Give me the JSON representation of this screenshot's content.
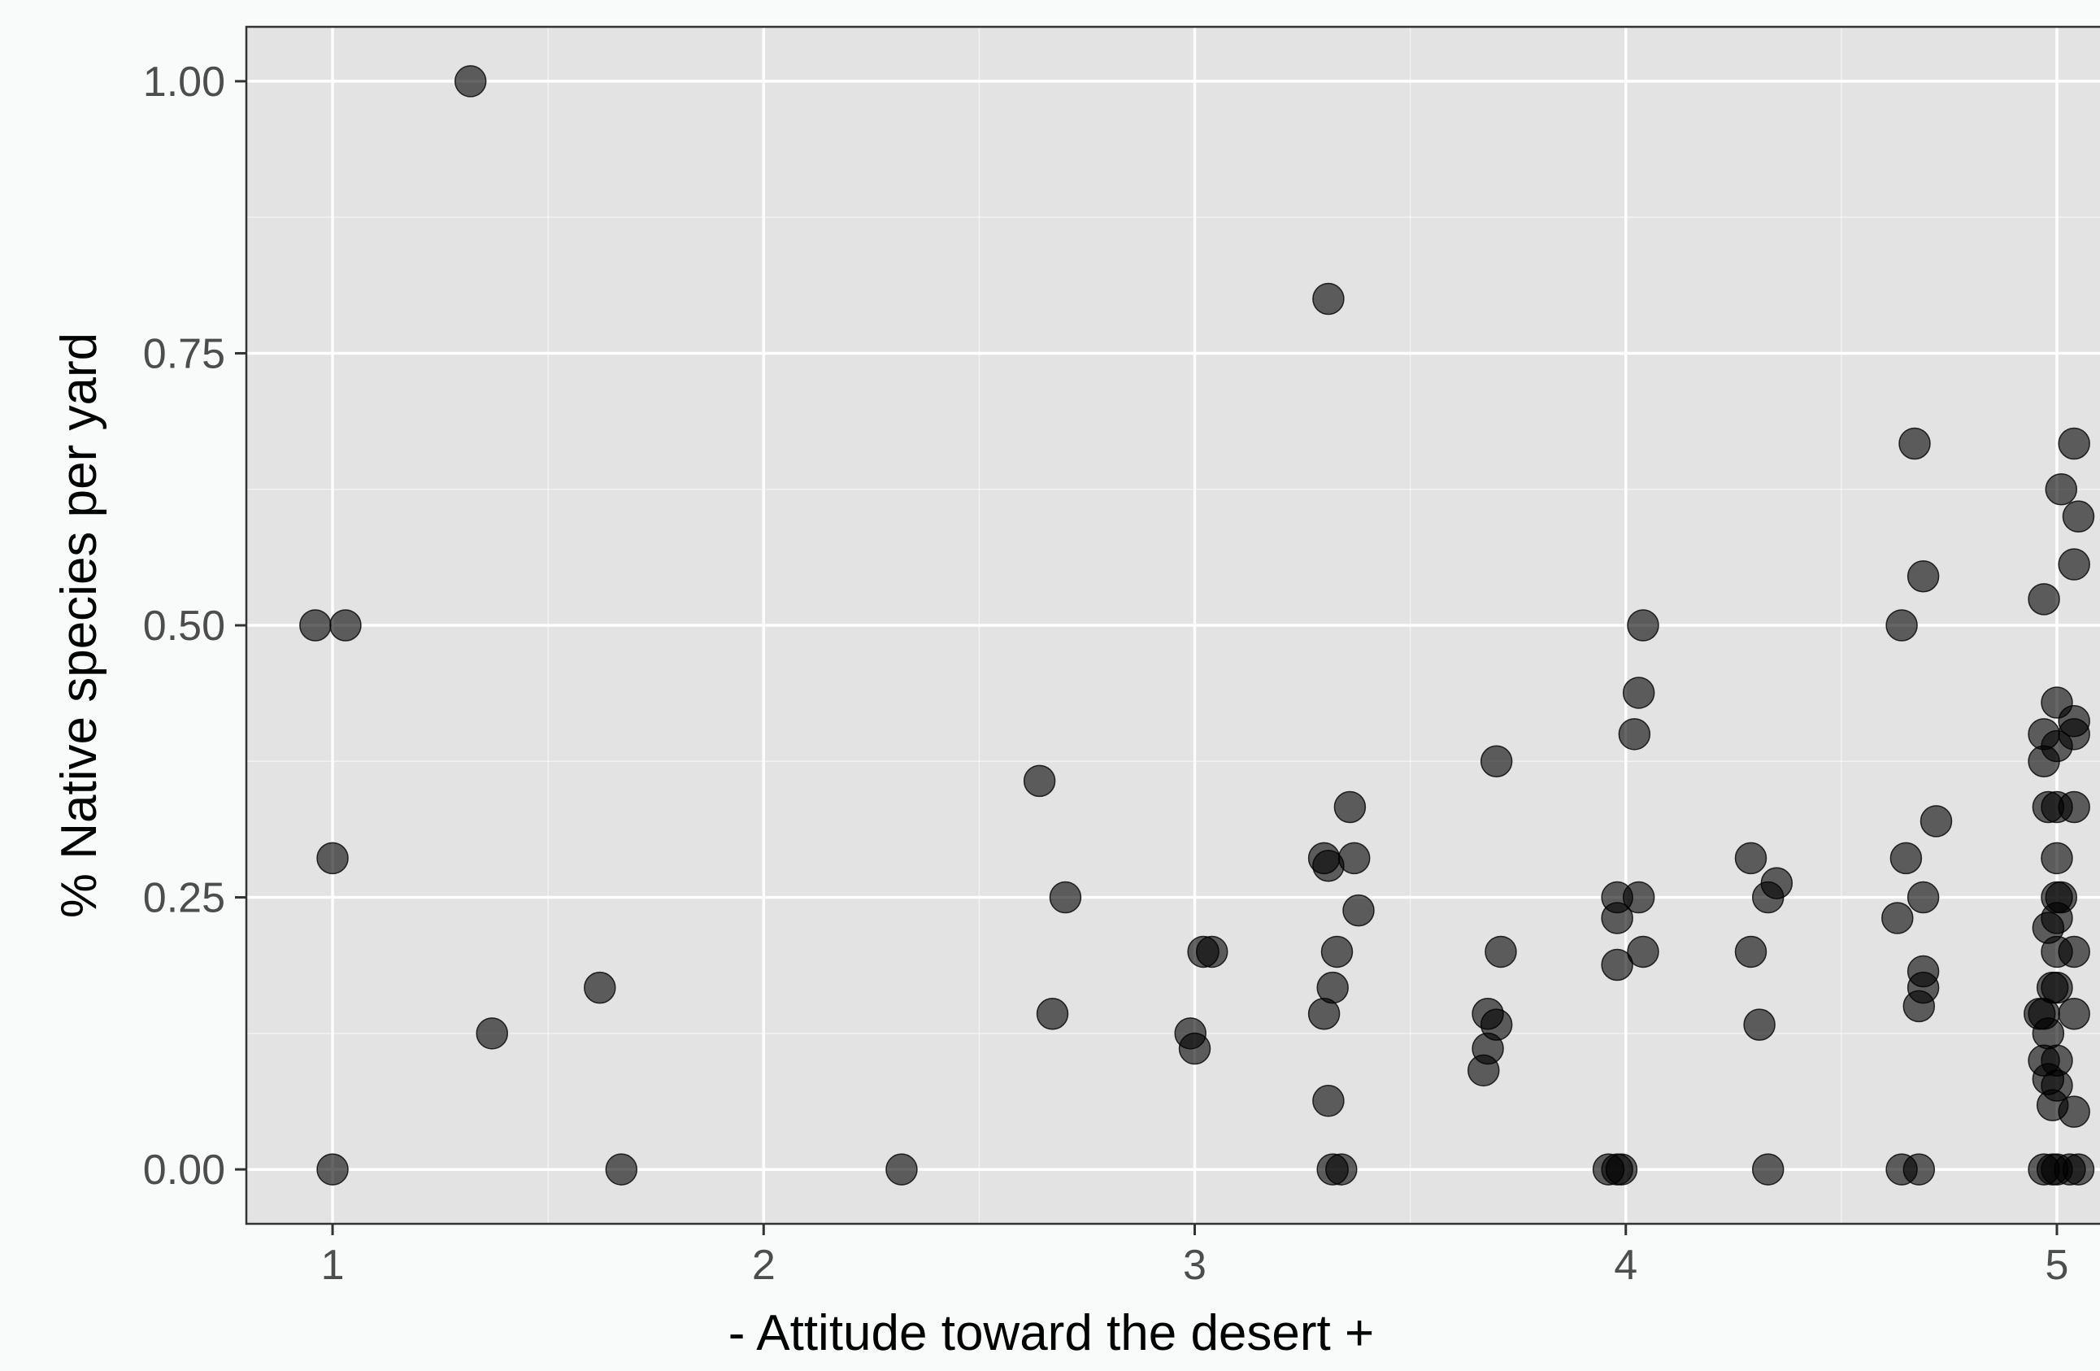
{
  "chart_data": {
    "type": "scatter",
    "title": "",
    "xlabel": "- Attitude toward the desert +",
    "ylabel": "% Native species per yard",
    "xlim": [
      0.8,
      5.1
    ],
    "ylim": [
      -0.05,
      1.05
    ],
    "x_ticks": [
      1,
      2,
      3,
      4,
      5
    ],
    "x_tick_labels": [
      "1",
      "2",
      "3",
      "4",
      "5"
    ],
    "y_ticks": [
      0,
      0.25,
      0.5,
      0.75,
      1
    ],
    "y_tick_labels": [
      "0.00",
      "0.25",
      "0.50",
      "0.75",
      "1.00"
    ],
    "grid": true,
    "legend": "none",
    "colors": {
      "panel": "#e3e3e3",
      "grid": "#ffffff",
      "point": "#000000",
      "point_opacity": 0.6
    },
    "points": [
      {
        "x": 0.96,
        "y": 0.5
      },
      {
        "x": 1.03,
        "y": 0.5
      },
      {
        "x": 1.0,
        "y": 0.286
      },
      {
        "x": 1.0,
        "y": 0.0
      },
      {
        "x": 1.32,
        "y": 1.0
      },
      {
        "x": 1.37,
        "y": 0.125
      },
      {
        "x": 1.62,
        "y": 0.167
      },
      {
        "x": 1.67,
        "y": 0.0
      },
      {
        "x": 2.32,
        "y": 0.0
      },
      {
        "x": 2.64,
        "y": 0.357
      },
      {
        "x": 2.67,
        "y": 0.143
      },
      {
        "x": 2.7,
        "y": 0.25
      },
      {
        "x": 2.99,
        "y": 0.125
      },
      {
        "x": 3.0,
        "y": 0.111
      },
      {
        "x": 3.02,
        "y": 0.2
      },
      {
        "x": 3.04,
        "y": 0.2
      },
      {
        "x": 3.31,
        "y": 0.8
      },
      {
        "x": 3.3,
        "y": 0.286
      },
      {
        "x": 3.31,
        "y": 0.279
      },
      {
        "x": 3.36,
        "y": 0.333
      },
      {
        "x": 3.37,
        "y": 0.286
      },
      {
        "x": 3.38,
        "y": 0.238
      },
      {
        "x": 3.33,
        "y": 0.2
      },
      {
        "x": 3.32,
        "y": 0.167
      },
      {
        "x": 3.3,
        "y": 0.143
      },
      {
        "x": 3.31,
        "y": 0.063
      },
      {
        "x": 3.32,
        "y": 0.0
      },
      {
        "x": 3.34,
        "y": 0.0
      },
      {
        "x": 3.7,
        "y": 0.375
      },
      {
        "x": 3.71,
        "y": 0.2
      },
      {
        "x": 3.68,
        "y": 0.143
      },
      {
        "x": 3.7,
        "y": 0.133
      },
      {
        "x": 3.68,
        "y": 0.111
      },
      {
        "x": 3.67,
        "y": 0.091
      },
      {
        "x": 4.04,
        "y": 0.5
      },
      {
        "x": 4.03,
        "y": 0.438
      },
      {
        "x": 4.02,
        "y": 0.4
      },
      {
        "x": 3.98,
        "y": 0.25
      },
      {
        "x": 4.03,
        "y": 0.25
      },
      {
        "x": 3.98,
        "y": 0.231
      },
      {
        "x": 4.04,
        "y": 0.2
      },
      {
        "x": 3.98,
        "y": 0.188
      },
      {
        "x": 3.96,
        "y": 0.0
      },
      {
        "x": 3.98,
        "y": 0.0
      },
      {
        "x": 3.99,
        "y": 0.0
      },
      {
        "x": 4.29,
        "y": 0.286
      },
      {
        "x": 4.35,
        "y": 0.263
      },
      {
        "x": 4.33,
        "y": 0.25
      },
      {
        "x": 4.29,
        "y": 0.2
      },
      {
        "x": 4.31,
        "y": 0.133
      },
      {
        "x": 4.33,
        "y": 0.0
      },
      {
        "x": 4.67,
        "y": 0.667
      },
      {
        "x": 4.69,
        "y": 0.545
      },
      {
        "x": 4.64,
        "y": 0.5
      },
      {
        "x": 4.72,
        "y": 0.32
      },
      {
        "x": 4.65,
        "y": 0.286
      },
      {
        "x": 4.69,
        "y": 0.25
      },
      {
        "x": 4.63,
        "y": 0.231
      },
      {
        "x": 4.69,
        "y": 0.182
      },
      {
        "x": 4.69,
        "y": 0.167
      },
      {
        "x": 4.68,
        "y": 0.15
      },
      {
        "x": 4.64,
        "y": 0.0
      },
      {
        "x": 4.68,
        "y": 0.0
      },
      {
        "x": 5.04,
        "y": 0.667
      },
      {
        "x": 5.01,
        "y": 0.625
      },
      {
        "x": 5.05,
        "y": 0.6
      },
      {
        "x": 5.04,
        "y": 0.556
      },
      {
        "x": 4.97,
        "y": 0.524
      },
      {
        "x": 5.0,
        "y": 0.429
      },
      {
        "x": 5.04,
        "y": 0.412
      },
      {
        "x": 4.97,
        "y": 0.4
      },
      {
        "x": 5.04,
        "y": 0.4
      },
      {
        "x": 5.0,
        "y": 0.389
      },
      {
        "x": 4.97,
        "y": 0.375
      },
      {
        "x": 4.98,
        "y": 0.333
      },
      {
        "x": 5.0,
        "y": 0.333
      },
      {
        "x": 5.04,
        "y": 0.333
      },
      {
        "x": 5.0,
        "y": 0.286
      },
      {
        "x": 5.0,
        "y": 0.25
      },
      {
        "x": 5.01,
        "y": 0.25
      },
      {
        "x": 5.0,
        "y": 0.231
      },
      {
        "x": 4.98,
        "y": 0.222
      },
      {
        "x": 5.0,
        "y": 0.2
      },
      {
        "x": 5.04,
        "y": 0.2
      },
      {
        "x": 4.99,
        "y": 0.167
      },
      {
        "x": 5.0,
        "y": 0.167
      },
      {
        "x": 4.97,
        "y": 0.143
      },
      {
        "x": 4.96,
        "y": 0.143
      },
      {
        "x": 5.04,
        "y": 0.143
      },
      {
        "x": 4.98,
        "y": 0.125
      },
      {
        "x": 5.0,
        "y": 0.1
      },
      {
        "x": 4.97,
        "y": 0.1
      },
      {
        "x": 4.98,
        "y": 0.083
      },
      {
        "x": 5.0,
        "y": 0.077
      },
      {
        "x": 4.99,
        "y": 0.059
      },
      {
        "x": 5.04,
        "y": 0.053
      },
      {
        "x": 4.97,
        "y": 0.0
      },
      {
        "x": 4.99,
        "y": 0.0
      },
      {
        "x": 5.0,
        "y": 0.0
      },
      {
        "x": 5.03,
        "y": 0.0
      },
      {
        "x": 5.05,
        "y": 0.0
      }
    ]
  }
}
